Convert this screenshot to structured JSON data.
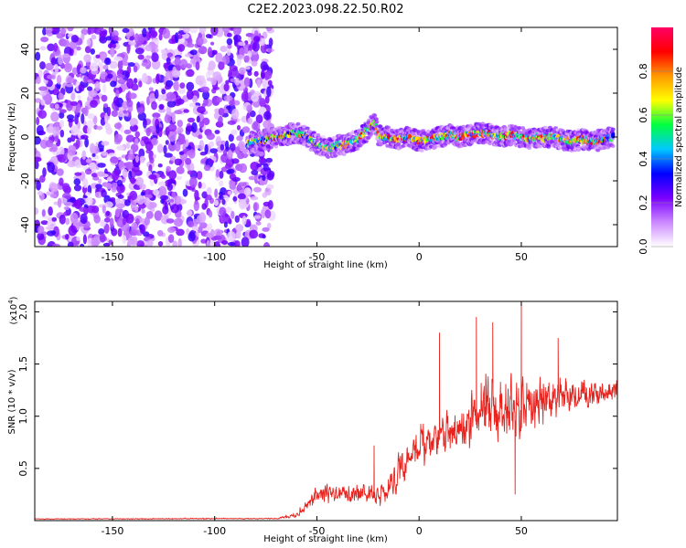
{
  "title": "C2E2.2023.098.22.50.R02",
  "chart_data": [
    {
      "type": "heatmap",
      "name": "spectrogram",
      "xlabel": "Height of straight line (km)",
      "ylabel": "Frequency (Hz)",
      "xlim": [
        -188,
        97
      ],
      "ylim": [
        -50,
        50
      ],
      "x_ticks": [
        -150,
        -100,
        -50,
        0,
        50
      ],
      "y_ticks": [
        -40,
        -20,
        0,
        20,
        40
      ],
      "noise_region_x": [
        -188,
        -72
      ],
      "signal_ridge": {
        "x": [
          -84,
          -75,
          -70,
          -65,
          -60,
          -55,
          -50,
          -45,
          -40,
          -35,
          -30,
          -25,
          -22,
          -20,
          -15,
          -10,
          -5,
          0,
          5,
          10,
          15,
          20,
          25,
          30,
          35,
          40,
          45,
          50,
          55,
          60,
          65,
          70,
          75,
          80,
          85,
          90,
          95
        ],
        "freq": [
          -3,
          -1,
          0,
          1,
          2,
          0,
          -3,
          -5,
          -4,
          -3,
          -1,
          3,
          7,
          1,
          0,
          -1,
          0,
          -2,
          -1,
          0,
          1,
          0,
          1,
          2,
          1,
          0,
          1,
          0,
          -1,
          0,
          0,
          -1,
          -2,
          -1,
          -2,
          -1,
          0
        ]
      },
      "colorbar": {
        "label": "Normalized spectral amplitude",
        "range": [
          0,
          1
        ],
        "ticks": [
          "0.0",
          "0.2",
          "0.4",
          "0.6",
          "0.8"
        ],
        "stops": [
          "#ffffff",
          "#cc88ff",
          "#7a00ff",
          "#0000ff",
          "#00c8ff",
          "#00ff40",
          "#ffff00",
          "#ff9900",
          "#ff0000",
          "#ff0066"
        ]
      }
    },
    {
      "type": "line",
      "name": "snr",
      "xlabel": "Height of straight line (km)",
      "ylabel": "SNR (10 * v/v)",
      "exponent_label": "(x10",
      "exponent_power": "4",
      "exponent_close": ")",
      "xlim": [
        -188,
        97
      ],
      "ylim": [
        0,
        21000
      ],
      "x_ticks": [
        -150,
        -100,
        -50,
        0,
        50
      ],
      "y_ticks": [
        5000,
        10000,
        15000,
        20000
      ],
      "y_tick_labels": [
        "0.5",
        "1.0",
        "1.5",
        "2.0"
      ],
      "color": "#e8231e",
      "envelope_x": [
        -188,
        -70,
        -60,
        -50,
        -40,
        -30,
        -20,
        -15,
        -10,
        0,
        10,
        20,
        30,
        40,
        50,
        60,
        70,
        80,
        90,
        97
      ],
      "envelope_mean": [
        150,
        200,
        500,
        2200,
        2600,
        2600,
        2500,
        3200,
        5000,
        6800,
        7800,
        8500,
        10000,
        10500,
        10800,
        11500,
        12000,
        12200,
        12300,
        12500
      ],
      "envelope_amp": [
        60,
        80,
        400,
        1400,
        1500,
        1600,
        1900,
        2300,
        2800,
        3000,
        3600,
        4200,
        5000,
        5400,
        5500,
        4200,
        3200,
        2500,
        2000,
        1800
      ],
      "peak_annotations": [
        {
          "x": -22,
          "y": 7200
        },
        {
          "x": 10,
          "y": 18000
        },
        {
          "x": 28,
          "y": 19500
        },
        {
          "x": 36,
          "y": 19000
        },
        {
          "x": 47,
          "y": 2500
        },
        {
          "x": 50,
          "y": 21000
        },
        {
          "x": 68,
          "y": 17500
        }
      ]
    }
  ]
}
